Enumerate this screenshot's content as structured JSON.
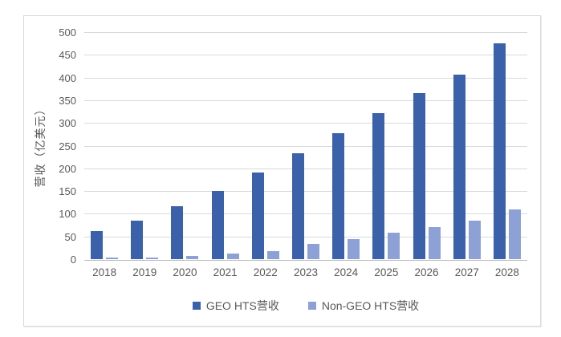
{
  "chart_data": {
    "type": "bar",
    "title": "",
    "xlabel": "",
    "ylabel": "营收（亿美元）",
    "categories": [
      "2018",
      "2019",
      "2020",
      "2021",
      "2022",
      "2023",
      "2024",
      "2025",
      "2026",
      "2027",
      "2028"
    ],
    "series": [
      {
        "name": "GEO HTS营收",
        "color": "#3B61AB",
        "values": [
          62,
          85,
          116,
          150,
          190,
          233,
          278,
          322,
          366,
          407,
          475
        ]
      },
      {
        "name": "Non-GEO HTS营收",
        "color": "#8EA1D6",
        "values": [
          3,
          4,
          7,
          13,
          18,
          33,
          45,
          58,
          70,
          85,
          110
        ]
      }
    ],
    "ylim": [
      0,
      500
    ],
    "ytick_step": 50,
    "grid": true,
    "legend_position": "bottom"
  },
  "colors": {
    "gridline": "#D9D9D9",
    "axis_line": "#BFBFBF",
    "tick_text": "#595959",
    "frame_border": "#D9D9DF",
    "background": "#FFFFFF"
  }
}
